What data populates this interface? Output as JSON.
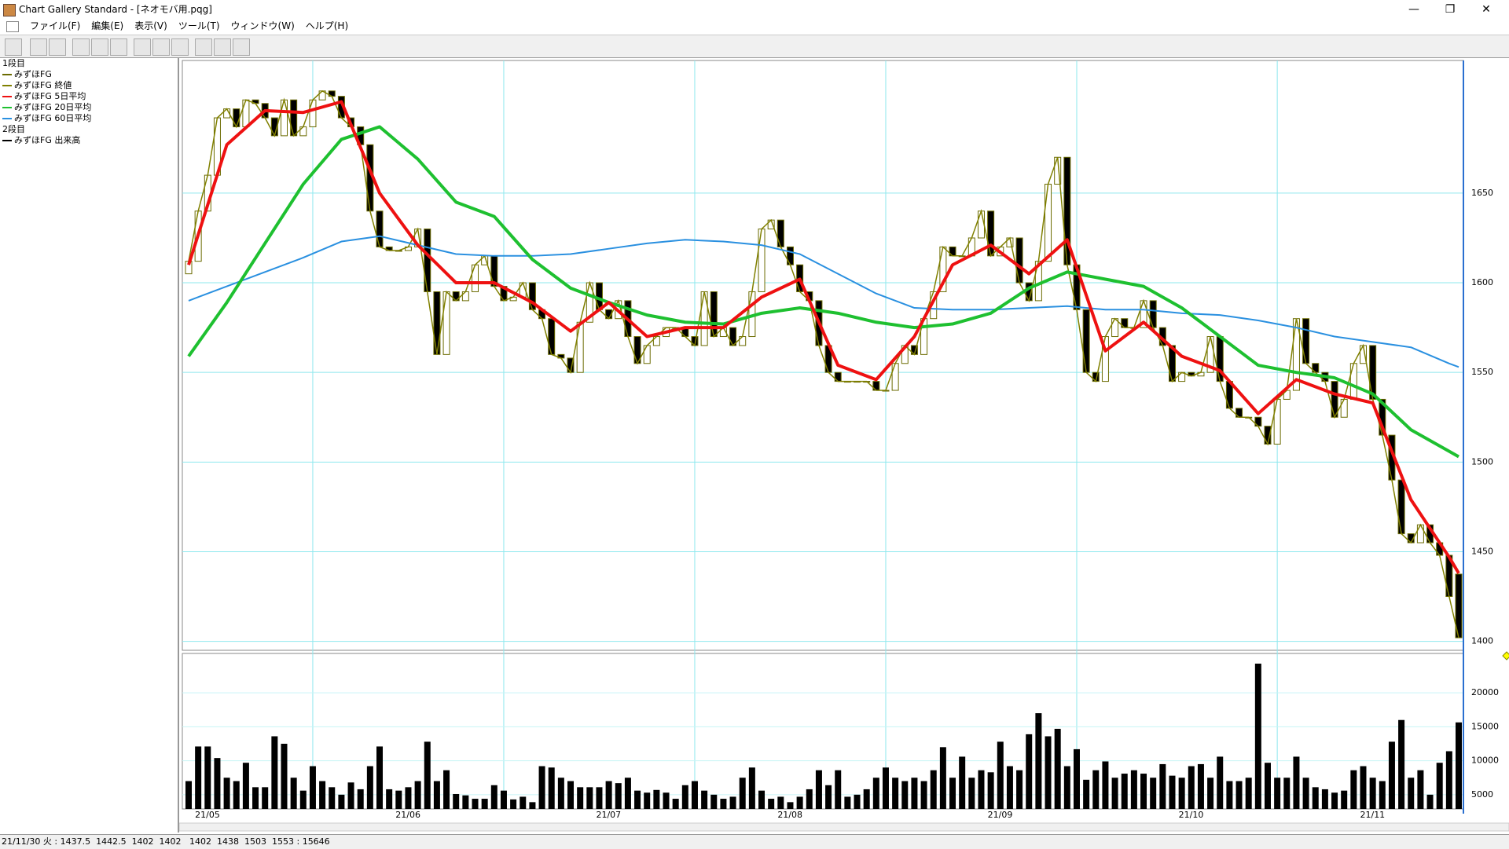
{
  "window": {
    "title": "Chart Gallery Standard - [ネオモバ用.pqg]",
    "menu": [
      "ファイル(F)",
      "編集(E)",
      "表示(V)",
      "ツール(T)",
      "ウィンドウ(W)",
      "ヘルプ(H)"
    ],
    "status": "21/11/30 火 : 1437.5  1442.5  1402  1402   1402  1438  1503  1553 : 15646"
  },
  "chart_data": {
    "type": "candlestick",
    "legend_groups": [
      "1段目",
      "2段目"
    ],
    "categories": [
      null,
      "21/05",
      null,
      null,
      null,
      null,
      null,
      null,
      null,
      null,
      null,
      null,
      null,
      null,
      null,
      null,
      null,
      null,
      null,
      null,
      null,
      null,
      "21/06",
      null,
      null,
      null,
      null,
      null,
      null,
      null,
      null,
      null,
      null,
      null,
      null,
      null,
      null,
      null,
      null,
      null,
      null,
      null,
      null,
      "21/07",
      null,
      null,
      null,
      null,
      null,
      null,
      null,
      null,
      null,
      null,
      null,
      null,
      null,
      null,
      null,
      null,
      null,
      null,
      "21/08",
      null,
      null,
      null,
      null,
      null,
      null,
      null,
      null,
      null,
      null,
      null,
      null,
      null,
      null,
      null,
      null,
      null,
      null,
      null,
      null,
      null,
      "21/09",
      null,
      null,
      null,
      null,
      null,
      null,
      null,
      null,
      null,
      null,
      null,
      null,
      null,
      null,
      null,
      null,
      null,
      null,
      null,
      "21/10",
      null,
      null,
      null,
      null,
      null,
      null,
      null,
      null,
      null,
      null,
      null,
      null,
      null,
      null,
      null,
      null,
      null,
      null,
      "21/11",
      null,
      null,
      null,
      null,
      null,
      null,
      null,
      null,
      null,
      null
    ],
    "price": {
      "ylim": [
        1395,
        1724
      ],
      "yticks": [
        1400,
        1450,
        1500,
        1550,
        1600,
        1650
      ],
      "grid": true,
      "candles": {
        "name": "みずほFG",
        "color": "#6b6b00",
        "open": [
          1605,
          1612,
          1640,
          1660,
          1692,
          1697,
          1687,
          1702,
          1700,
          1692,
          1682,
          1702,
          1682,
          1687,
          1702,
          1707,
          1704,
          1692,
          1687,
          1677,
          1640,
          1620,
          1618,
          1618,
          1620,
          1630,
          1595,
          1560,
          1595,
          1590,
          1595,
          1610,
          1615,
          1598,
          1590,
          1592,
          1600,
          1585,
          1580,
          1560,
          1558,
          1550,
          1578,
          1600,
          1585,
          1580,
          1590,
          1570,
          1555,
          1565,
          1570,
          1575,
          1575,
          1570,
          1565,
          1595,
          1570,
          1575,
          1565,
          1570,
          1595,
          1630,
          1635,
          1620,
          1610,
          1595,
          1590,
          1565,
          1550,
          1545,
          1545,
          1545,
          1545,
          1540,
          1540,
          1555,
          1565,
          1560,
          1580,
          1595,
          1620,
          1615,
          1615,
          1625,
          1640,
          1615,
          1620,
          1625,
          1600,
          1590,
          1612,
          1655,
          1670,
          1610,
          1585,
          1550,
          1545,
          1570,
          1580,
          1575,
          1575,
          1590,
          1575,
          1565,
          1545,
          1550,
          1548,
          1550,
          1570,
          1545,
          1530,
          1525,
          1525,
          1520,
          1510,
          1535,
          1540,
          1580,
          1555,
          1550,
          1545,
          1525,
          1535,
          1555,
          1565,
          1535,
          1515,
          1490,
          1460,
          1455,
          1465,
          1455,
          1448,
          1437.5
        ],
        "close": [
          1612,
          1640,
          1660,
          1692,
          1697,
          1687,
          1702,
          1700,
          1692,
          1682,
          1702,
          1682,
          1687,
          1702,
          1707,
          1704,
          1692,
          1687,
          1677,
          1640,
          1620,
          1618,
          1618,
          1620,
          1630,
          1595,
          1560,
          1595,
          1590,
          1595,
          1610,
          1615,
          1598,
          1590,
          1592,
          1600,
          1585,
          1580,
          1560,
          1558,
          1550,
          1578,
          1600,
          1585,
          1580,
          1590,
          1570,
          1555,
          1565,
          1570,
          1575,
          1575,
          1570,
          1565,
          1595,
          1570,
          1575,
          1565,
          1570,
          1595,
          1630,
          1635,
          1620,
          1610,
          1595,
          1590,
          1565,
          1550,
          1545,
          1545,
          1545,
          1545,
          1540,
          1540,
          1555,
          1565,
          1560,
          1580,
          1595,
          1620,
          1615,
          1615,
          1625,
          1640,
          1615,
          1620,
          1625,
          1600,
          1590,
          1612,
          1655,
          1670,
          1610,
          1585,
          1550,
          1545,
          1570,
          1580,
          1575,
          1575,
          1590,
          1575,
          1565,
          1545,
          1550,
          1548,
          1550,
          1570,
          1545,
          1530,
          1525,
          1525,
          1520,
          1510,
          1535,
          1540,
          1580,
          1555,
          1550,
          1545,
          1525,
          1535,
          1555,
          1565,
          1535,
          1515,
          1490,
          1460,
          1455,
          1465,
          1455,
          1448,
          1425,
          1402
        ]
      },
      "close_line": {
        "name": "みずほFG 終値",
        "color": "#808000"
      },
      "ma": {
        "x": [
          0,
          4,
          8,
          12,
          16,
          20,
          24,
          28,
          32,
          36,
          40,
          44,
          48,
          52,
          56,
          60,
          64,
          68,
          72,
          76,
          80,
          84,
          88,
          92,
          96,
          100,
          104,
          108,
          112,
          116,
          120,
          124,
          128,
          132,
          133
        ],
        "series": [
          {
            "name": "みずほFG 5日平均",
            "color": "#ee1111",
            "values": [
              1610,
              1677,
              1696,
              1695,
              1701,
              1650,
              1621,
              1600,
              1600,
              1589,
              1573,
              1589,
              1570,
              1575,
              1575,
              1592,
              1602,
              1554,
              1546,
              1570,
              1610,
              1621,
              1605,
              1624,
              1562,
              1578,
              1559,
              1551,
              1527,
              1546,
              1538,
              1533,
              1479,
              1447,
              1438
            ]
          },
          {
            "name": "みずほFG 20日平均",
            "color": "#1ec030",
            "values": [
              1559,
              1589,
              1622,
              1655,
              1680,
              1687,
              1669,
              1645,
              1637,
              1613,
              1597,
              1589,
              1582,
              1578,
              1577,
              1583,
              1586,
              1583,
              1578,
              1575,
              1577,
              1583,
              1597,
              1606,
              1602,
              1598,
              1586,
              1570,
              1554,
              1550,
              1547,
              1538,
              1518,
              1506,
              1503
            ]
          },
          {
            "name": "みずほFG 60日平均",
            "color": "#2a90e0",
            "values": [
              1590,
              1598,
              1606,
              1614,
              1623,
              1626,
              1621,
              1616,
              1615,
              1615,
              1616,
              1619,
              1622,
              1624,
              1623,
              1621,
              1616,
              1605,
              1594,
              1586,
              1585,
              1585,
              1586,
              1587,
              1585,
              1585,
              1583,
              1582,
              1579,
              1575,
              1570,
              1567,
              1564,
              1555,
              1553
            ]
          }
        ]
      }
    },
    "volume": {
      "ylim": [
        2900,
        25800
      ],
      "yticks": [
        5000,
        10000,
        15000,
        20000
      ],
      "grid": true,
      "series": {
        "name": "みずほFG 出来高",
        "color": "#000000",
        "values": [
          7000,
          12100,
          12100,
          10400,
          7500,
          7000,
          9700,
          6100,
          6100,
          13600,
          12500,
          7500,
          5600,
          9200,
          7000,
          6100,
          5000,
          6800,
          5800,
          9200,
          12100,
          5800,
          5600,
          6100,
          7000,
          12800,
          7000,
          8600,
          5100,
          4900,
          4400,
          4400,
          6400,
          5600,
          4300,
          4700,
          3900,
          9200,
          9000,
          7500,
          7000,
          6100,
          6100,
          6100,
          7000,
          6700,
          7500,
          5600,
          5300,
          5700,
          5300,
          4400,
          6400,
          7000,
          5600,
          5000,
          4400,
          4700,
          7500,
          9000,
          5600,
          4400,
          4700,
          3900,
          4700,
          5800,
          8600,
          6400,
          8600,
          4700,
          5000,
          5800,
          7500,
          9000,
          7500,
          7000,
          7500,
          7000,
          8600,
          12000,
          7500,
          10600,
          7500,
          8600,
          8300,
          12800,
          9200,
          8600,
          13900,
          17000,
          13600,
          14700,
          9200,
          11700,
          7200,
          8600,
          9900,
          7500,
          8100,
          8600,
          8100,
          7500,
          9500,
          7800,
          7500,
          9200,
          9500,
          7500,
          10600,
          7000,
          7000,
          7500,
          24300,
          9700,
          7500,
          7500,
          10600,
          7500,
          6100,
          5800,
          5300,
          5600,
          8600,
          9200,
          7500,
          7000,
          12800,
          16000,
          7500,
          8600,
          5000,
          9700,
          11400,
          15646
        ]
      }
    }
  }
}
